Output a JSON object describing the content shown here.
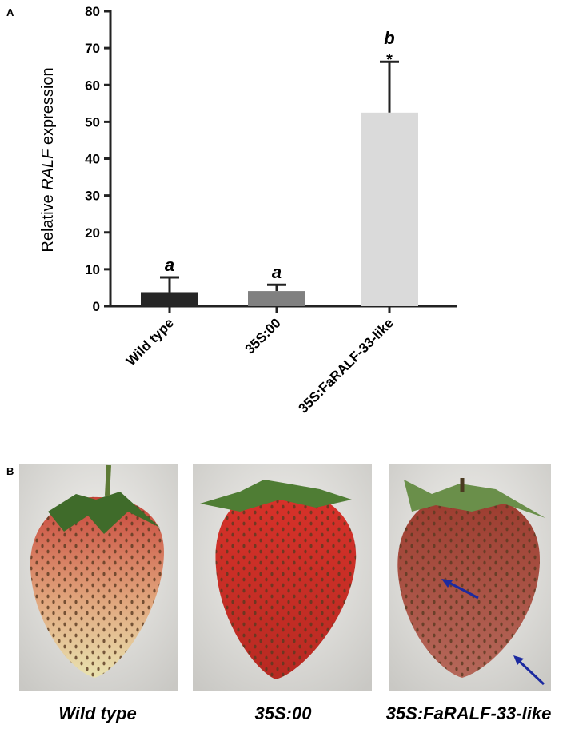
{
  "chart_data": {
    "type": "bar",
    "panel_label": "A",
    "ylabel": [
      "Relative",
      "RALF",
      "expression"
    ],
    "categories": [
      "Wild type",
      "35S:00",
      "35S:FaRALF-33-like"
    ],
    "values": [
      3.8,
      4.1,
      52.5
    ],
    "errors": [
      4.0,
      1.7,
      13.8
    ],
    "colors": [
      "#262626",
      "#808080",
      "#dadada"
    ],
    "significance": [
      "a",
      "a",
      "b"
    ],
    "marks": [
      null,
      null,
      "*"
    ],
    "ylim": [
      0,
      80
    ],
    "yticks": [
      0,
      10,
      20,
      30,
      40,
      50,
      60,
      70,
      80
    ],
    "grid": false
  },
  "photos": {
    "panel_label": "B",
    "captions": [
      "Wild type",
      "35S:00",
      "35S:FaRALF-33-like"
    ]
  }
}
